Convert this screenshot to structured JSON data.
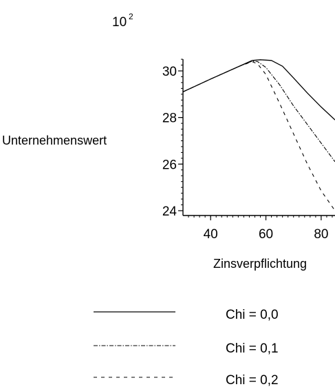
{
  "chart_data": {
    "type": "line",
    "y_scale_label": "10",
    "y_scale_exponent": "2",
    "xlabel": "Zinsverpflichtung",
    "ylabel": "Unternehmenswert",
    "xlim": [
      30,
      85
    ],
    "ylim": [
      23.8,
      30.6
    ],
    "x_ticks": [
      "40",
      "60",
      "80"
    ],
    "y_ticks": [
      "24",
      "26",
      "28",
      "30"
    ],
    "grid": false,
    "legend_position": "bottom",
    "series": [
      {
        "name": "Chi = 0,0",
        "dash": "solid",
        "x": [
          30,
          40,
          50,
          55,
          58,
          62,
          66,
          70,
          75,
          80,
          85
        ],
        "y": [
          29.1,
          29.65,
          30.18,
          30.45,
          30.48,
          30.45,
          30.2,
          29.7,
          29.05,
          28.45,
          27.9
        ]
      },
      {
        "name": "Chi = 0,1",
        "dash": "dashdot",
        "x": [
          30,
          40,
          50,
          55,
          57,
          60,
          65,
          70,
          75,
          80,
          85
        ],
        "y": [
          29.1,
          29.65,
          30.18,
          30.42,
          30.4,
          30.15,
          29.4,
          28.5,
          27.7,
          26.9,
          26.1
        ]
      },
      {
        "name": "Chi = 0,2",
        "dash": "dashed",
        "x": [
          30,
          40,
          50,
          55,
          57,
          60,
          65,
          70,
          75,
          80,
          85
        ],
        "y": [
          29.1,
          29.65,
          30.18,
          30.4,
          30.3,
          29.85,
          28.6,
          27.3,
          26.0,
          24.85,
          24.0
        ]
      }
    ]
  }
}
